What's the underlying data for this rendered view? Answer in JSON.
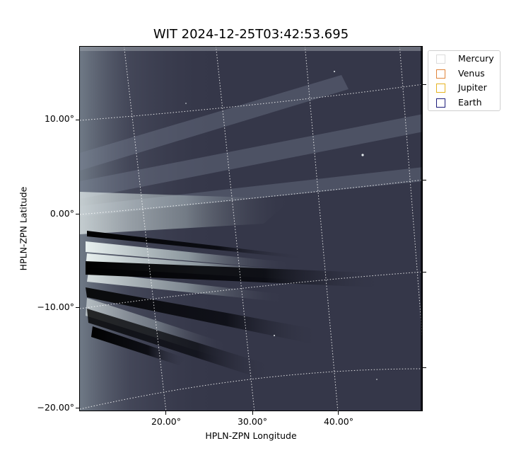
{
  "title": "WIT 2024-12-25T03:42:53.695",
  "x_axis": {
    "label": "HPLN-ZPN Longitude",
    "ticks": [
      "20.00°",
      "30.00°",
      "40.00°"
    ]
  },
  "y_axis": {
    "label": "HPLN-ZPN Latitude",
    "ticks": [
      "10.00°",
      "0.00°",
      "−10.00°",
      "−20.00°"
    ]
  },
  "legend": [
    {
      "label": "Mercury",
      "color": "#dcdcdc"
    },
    {
      "label": "Venus",
      "color": "#e0843a"
    },
    {
      "label": "Jupiter",
      "color": "#e6b422"
    },
    {
      "label": "Earth",
      "color": "#1c1c7a"
    }
  ],
  "image": {
    "colormap": "bone",
    "background_color": "#353749",
    "grid": "dotted white"
  }
}
